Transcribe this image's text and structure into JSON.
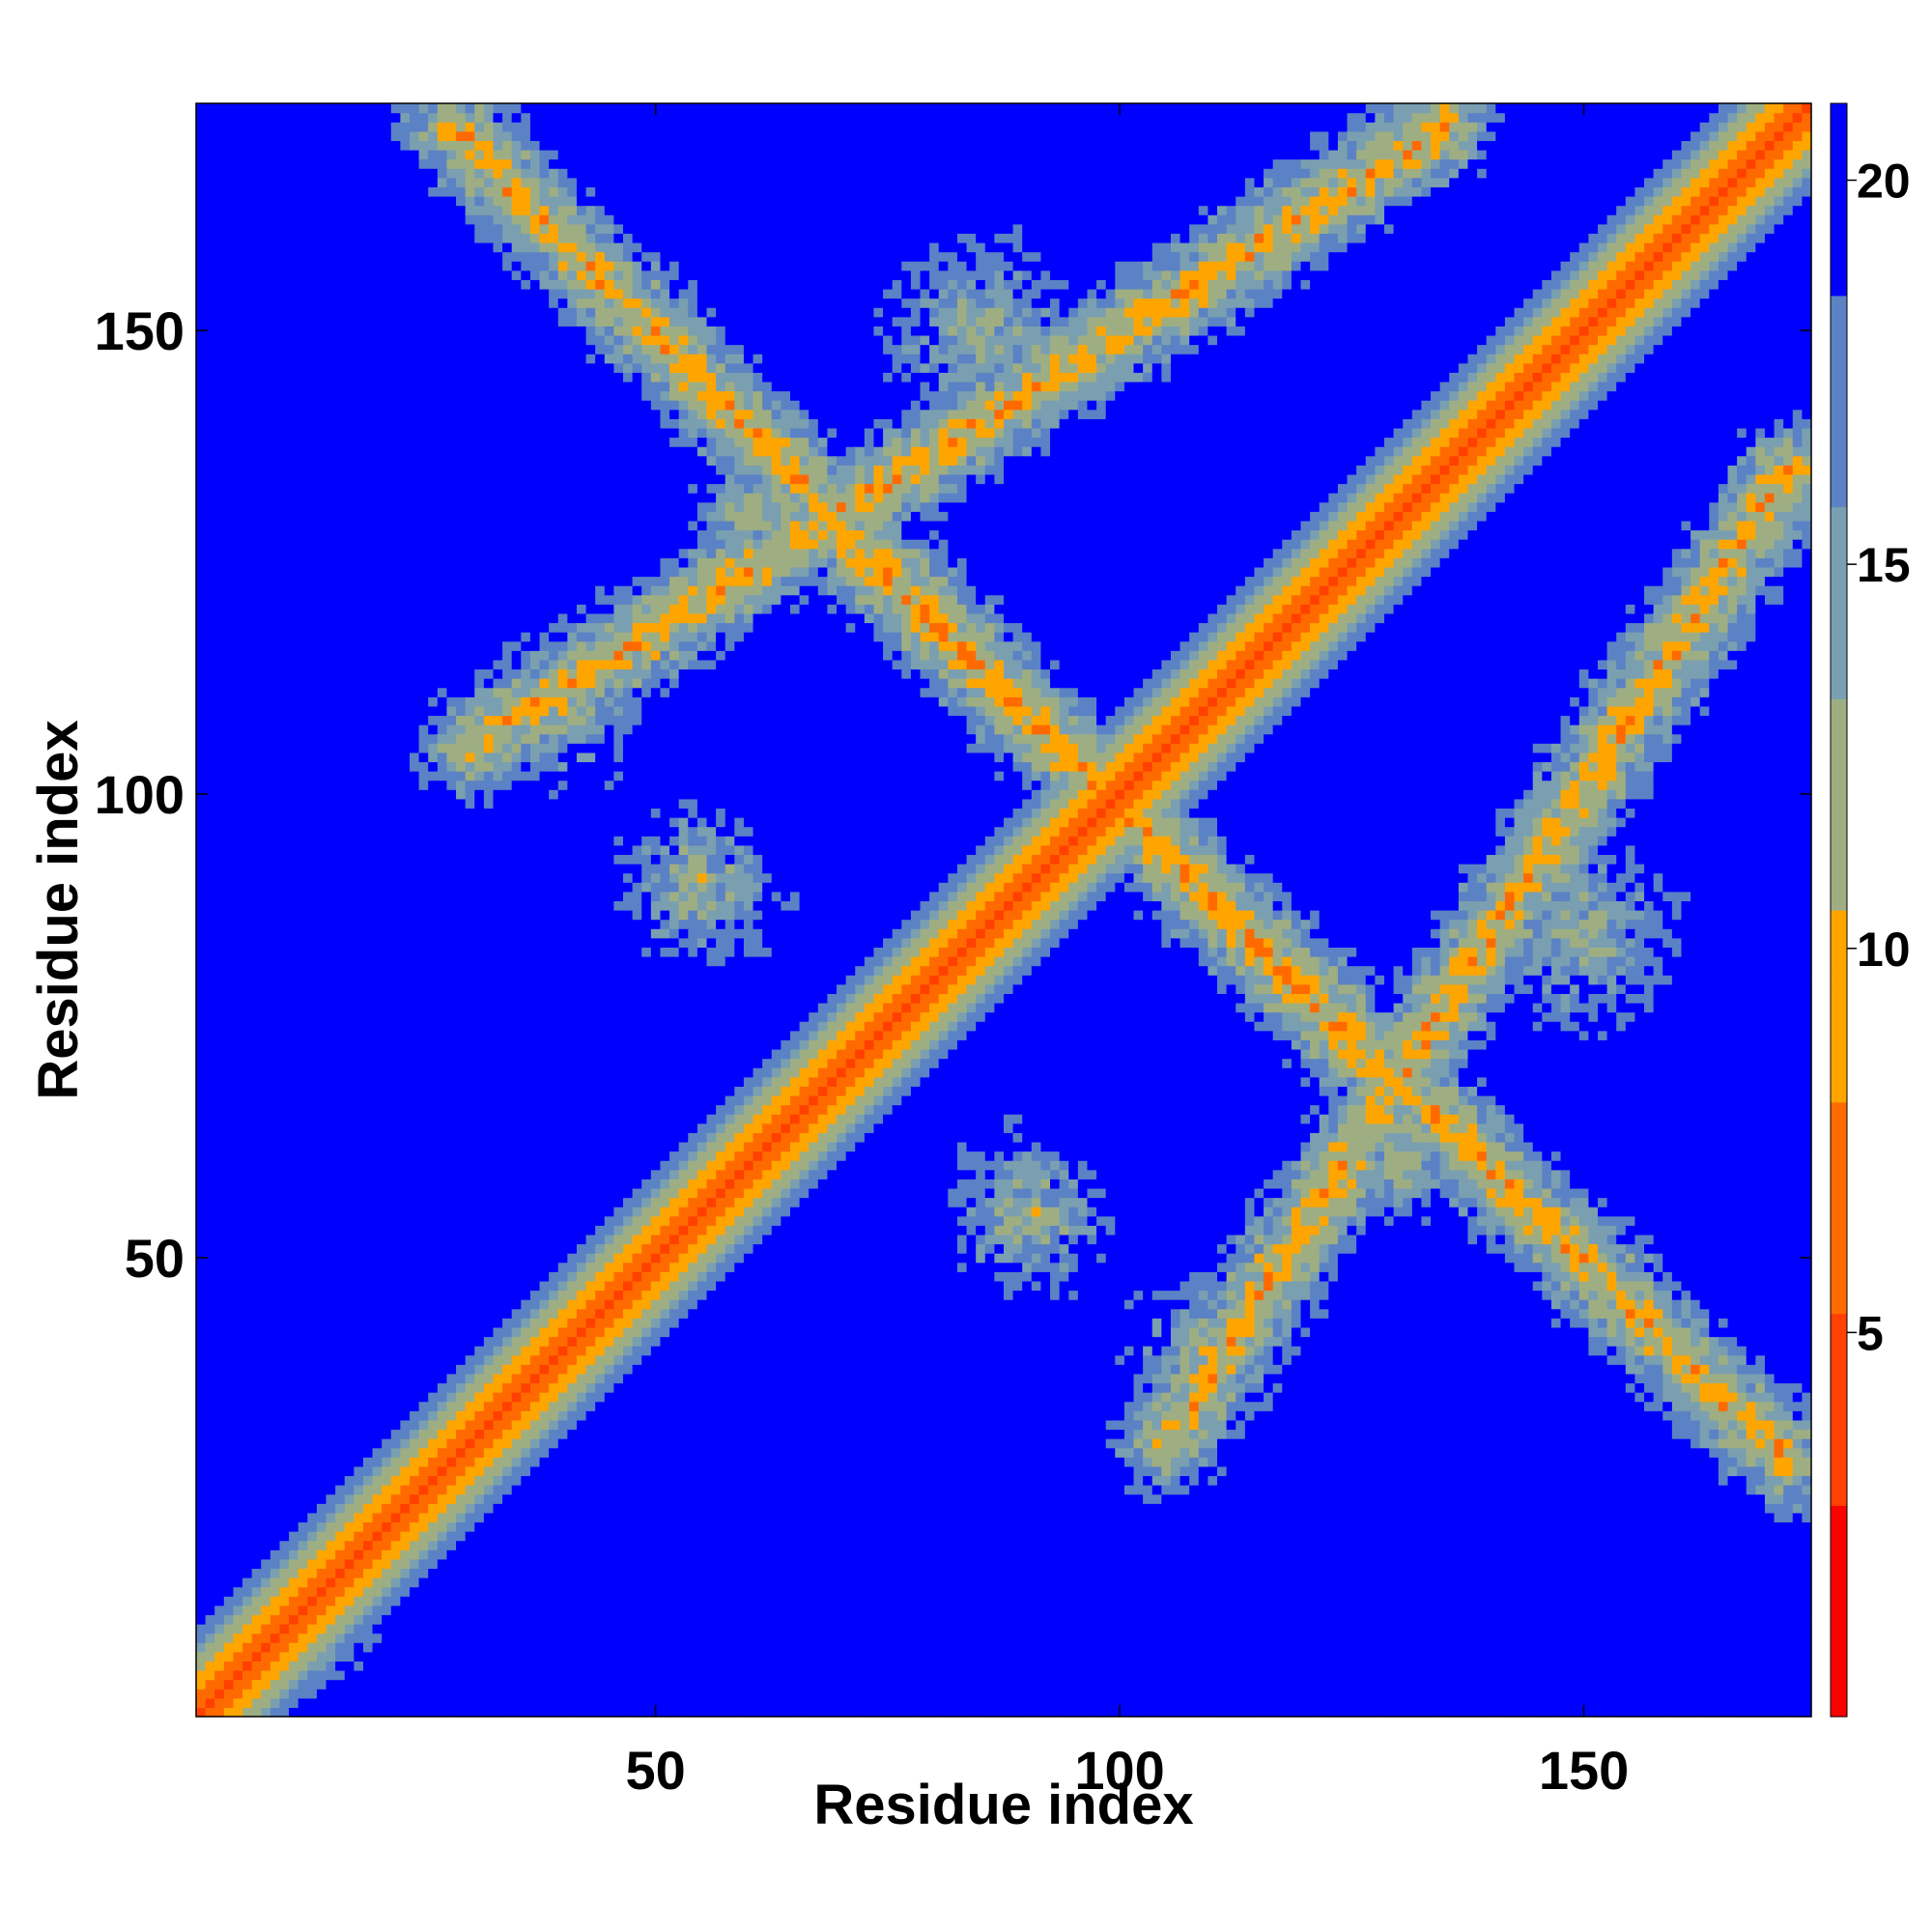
{
  "chart_data": {
    "type": "heatmap",
    "title": "",
    "xlabel": "Residue index",
    "ylabel": "Residue index",
    "n_residues": 174,
    "xlim": [
      1,
      174
    ],
    "ylim": [
      1,
      174
    ],
    "xticks": [
      50,
      100,
      150
    ],
    "yticks": [
      50,
      100,
      150
    ],
    "colorbar": {
      "range": [
        0,
        21
      ],
      "ticks": [
        5,
        10,
        15,
        20
      ],
      "colors_low_to_high": [
        "#ff0000",
        "#ff4000",
        "#ff6a00",
        "#ffa500",
        "#9fae82",
        "#7a9fb0",
        "#5b82c4",
        "#0000ff"
      ],
      "over_threshold_color": "#0000ff"
    },
    "grid": false,
    "structure": {
      "diagonal": {
        "from": 1,
        "to": 174,
        "core_distance": 3.8
      },
      "contact_bands": [
        {
          "from": [
            28,
            172
          ],
          "to": [
            128,
            70
          ],
          "description": "anti-diagonal band upper-left to lower-right"
        },
        {
          "from": [
            105,
            30
          ],
          "to": [
            172,
            135
          ],
          "description": "band parallel to diagonal, lower-right"
        },
        {
          "from": [
            30,
            105
          ],
          "to": [
            135,
            172
          ],
          "description": "band parallel to diagonal, upper-left (symmetric)"
        },
        {
          "from": [
            70,
            128
          ],
          "to": [
            172,
            28
          ],
          "description": "anti-diagonal band lower-right (symmetric)"
        }
      ],
      "contact_blobs": [
        {
          "center": [
            40,
            110
          ],
          "size": 10
        },
        {
          "center": [
            110,
            40
          ],
          "size": 10
        },
        {
          "center": [
            12,
            10
          ],
          "size": 8
        },
        {
          "center": [
            55,
            90
          ],
          "size": 10
        },
        {
          "center": [
            90,
            55
          ],
          "size": 10
        },
        {
          "center": [
            150,
            85
          ],
          "size": 12
        },
        {
          "center": [
            85,
            150
          ],
          "size": 12
        },
        {
          "center": [
            130,
            60
          ],
          "size": 8
        },
        {
          "center": [
            60,
            130
          ],
          "size": 8
        }
      ]
    }
  }
}
